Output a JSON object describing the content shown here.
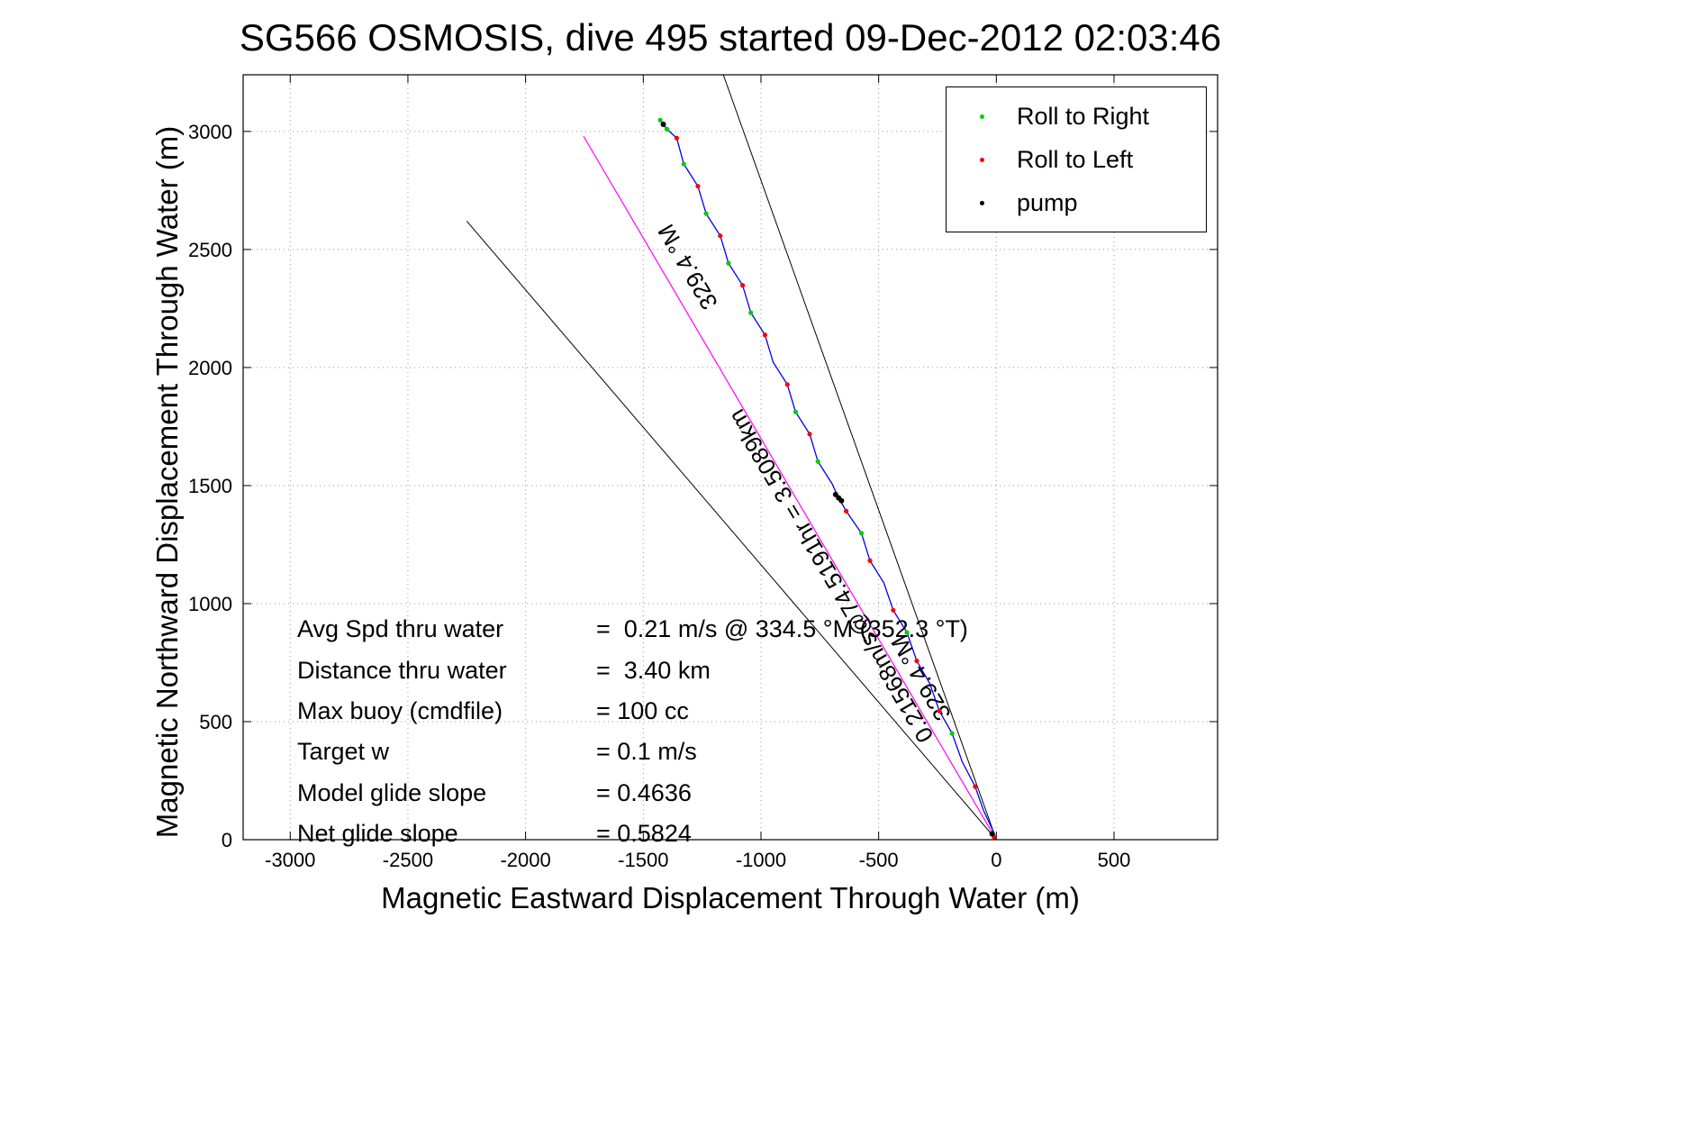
{
  "title": "SG566 OSMOSIS, dive 495 started 09-Dec-2012 02:03:46",
  "chart_data": {
    "type": "line",
    "title": "SG566 OSMOSIS, dive 495 started 09-Dec-2012 02:03:46",
    "xlabel": "Magnetic Eastward Displacement Through Water (m)",
    "ylabel": "Magnetic Northward Displacement Through Water (m)",
    "xlim": [
      -3200,
      940
    ],
    "ylim": [
      0,
      3240
    ],
    "xticks": [
      -3000,
      -2500,
      -2000,
      -1500,
      -1000,
      -500,
      0,
      500
    ],
    "yticks": [
      0,
      500,
      1000,
      1500,
      2000,
      2500,
      3000
    ],
    "grid": true,
    "colors": {
      "track": "#0000ee",
      "bearing_line": "#ff00ff",
      "fan_line": "#000000",
      "roll_right": "#00cc00",
      "roll_left": "#ff0000",
      "pump": "#000000",
      "grid": "#999999"
    },
    "legend": {
      "position": "top-right",
      "entries": [
        {
          "label": "Roll to Right",
          "color": "#00cc00"
        },
        {
          "label": "Roll to Left",
          "color": "#ff0000"
        },
        {
          "label": "pump",
          "color": "#000000"
        }
      ]
    },
    "track": {
      "name": "dive-track-through-water",
      "points": [
        [
          0,
          0
        ],
        [
          -15,
          40
        ],
        [
          -55,
          125
        ],
        [
          -90,
          225
        ],
        [
          -145,
          330
        ],
        [
          -188,
          450
        ],
        [
          -242,
          545
        ],
        [
          -283,
          662
        ],
        [
          -338,
          757
        ],
        [
          -380,
          878
        ],
        [
          -438,
          972
        ],
        [
          -478,
          1088
        ],
        [
          -537,
          1182
        ],
        [
          -573,
          1298
        ],
        [
          -638,
          1392
        ],
        [
          -670,
          1448
        ],
        [
          -698,
          1508
        ],
        [
          -758,
          1602
        ],
        [
          -793,
          1718
        ],
        [
          -853,
          1812
        ],
        [
          -888,
          1928
        ],
        [
          -948,
          2022
        ],
        [
          -983,
          2138
        ],
        [
          -1043,
          2232
        ],
        [
          -1078,
          2348
        ],
        [
          -1138,
          2442
        ],
        [
          -1173,
          2558
        ],
        [
          -1233,
          2652
        ],
        [
          -1268,
          2768
        ],
        [
          -1328,
          2862
        ],
        [
          -1358,
          2972
        ],
        [
          -1400,
          3010
        ],
        [
          -1428,
          3048
        ]
      ]
    },
    "bearing_line": {
      "from": [
        0,
        0
      ],
      "to": [
        -1754,
        2980
      ]
    },
    "fan_lines": [
      {
        "from": [
          0,
          0
        ],
        "to": [
          -1160,
          3240
        ]
      },
      {
        "from": [
          0,
          0
        ],
        "to": [
          -2250,
          2620
        ]
      }
    ],
    "markers": {
      "roll_right": [
        [
          -1428,
          3048
        ],
        [
          -1400,
          3010
        ],
        [
          -1328,
          2862
        ],
        [
          -1233,
          2652
        ],
        [
          -1138,
          2442
        ],
        [
          -1043,
          2232
        ],
        [
          -853,
          1812
        ],
        [
          -758,
          1602
        ],
        [
          -573,
          1298
        ],
        [
          -380,
          878
        ],
        [
          -188,
          450
        ]
      ],
      "roll_left": [
        [
          -1358,
          2972
        ],
        [
          -1268,
          2768
        ],
        [
          -1173,
          2558
        ],
        [
          -1078,
          2348
        ],
        [
          -983,
          2138
        ],
        [
          -888,
          1928
        ],
        [
          -793,
          1718
        ],
        [
          -638,
          1392
        ],
        [
          -537,
          1182
        ],
        [
          -438,
          972
        ],
        [
          -338,
          757
        ],
        [
          -242,
          545
        ],
        [
          -90,
          225
        ],
        [
          -10,
          12
        ]
      ],
      "pump": [
        [
          -670,
          1448
        ],
        [
          -683,
          1462
        ],
        [
          -658,
          1436
        ],
        [
          -1415,
          3030
        ],
        [
          -18,
          25
        ]
      ]
    },
    "annotations": [
      {
        "text": "329.4 °M",
        "x": -1282,
        "y": 2443,
        "rotation": -120.4
      },
      {
        "text": "0.21568m/s@74.5191hr = 3.5089km",
        "x": -674,
        "y": 1134,
        "rotation": -120.4
      },
      {
        "text": "329.4 °M",
        "x": -291,
        "y": 702,
        "rotation": -120.4
      }
    ],
    "stats": [
      {
        "label": "Avg Spd thru water",
        "value": "=  0.21 m/s @ 334.5 °M (352.3 °T)"
      },
      {
        "label": "Distance thru water",
        "value": "=  3.40 km"
      },
      {
        "label": "Max buoy (cmdfile)",
        "value": "= 100 cc"
      },
      {
        "label": "Target w",
        "value": "= 0.1 m/s"
      },
      {
        "label": "Model glide slope",
        "value": "= 0.4636"
      },
      {
        "label": "Net glide slope",
        "value": "= 0.5824"
      }
    ]
  }
}
